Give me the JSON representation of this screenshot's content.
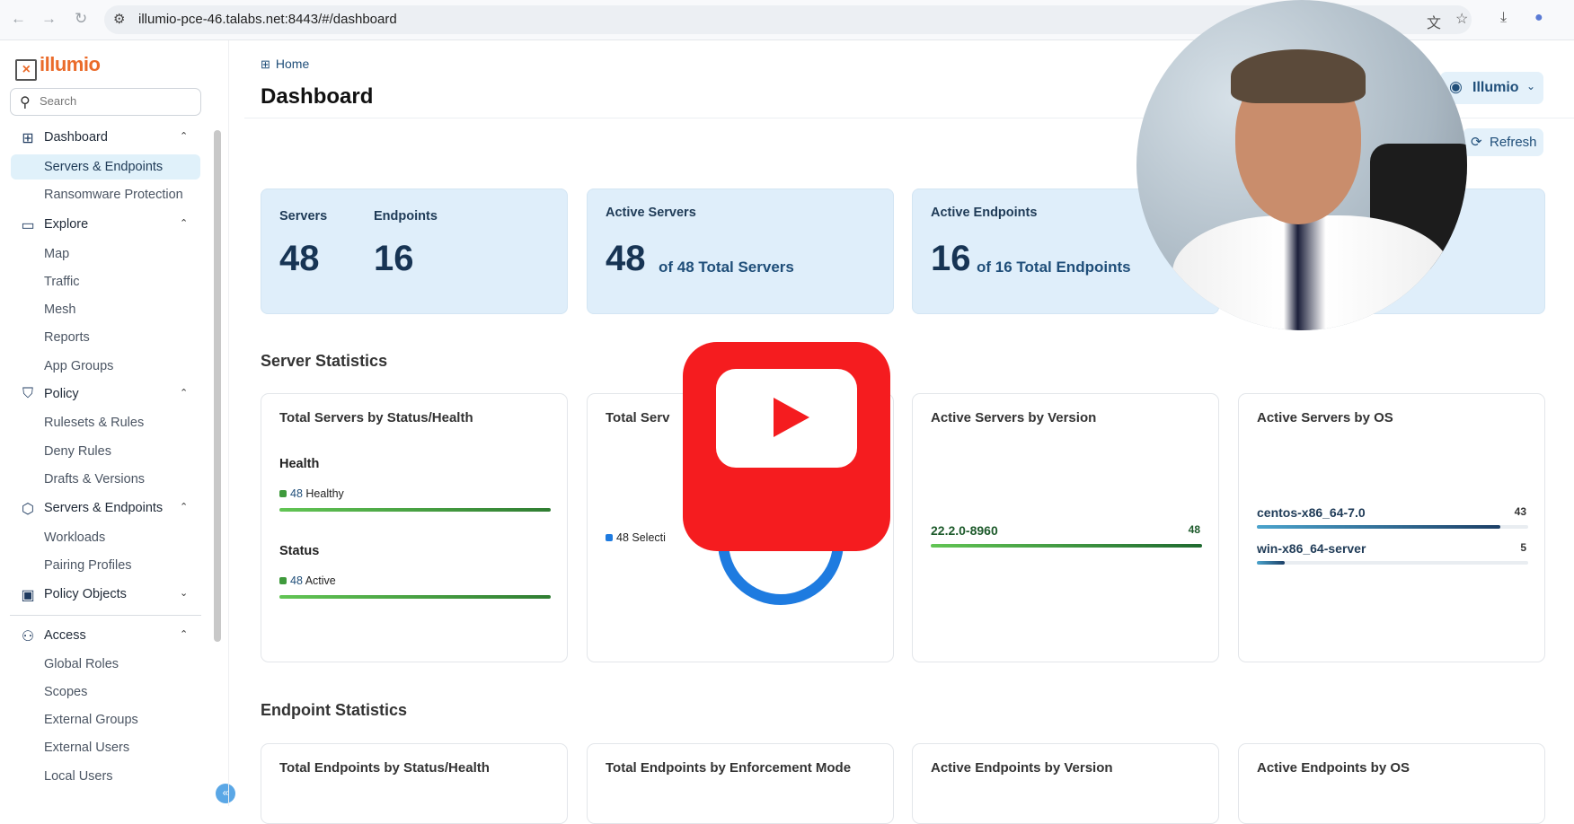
{
  "browser": {
    "url": "illumio-pce-46.talabs.net:8443/#/dashboard",
    "icons": [
      "back-icon",
      "forward-icon",
      "reload-icon",
      "site-settings-icon",
      "translate-icon",
      "star-icon",
      "download-icon",
      "profile-icon"
    ]
  },
  "sidebar": {
    "logo": "illumio",
    "search_placeholder": "Search",
    "sections": [
      {
        "label": "Dashboard",
        "icon": "grid-icon",
        "items": [
          "Servers & Endpoints",
          "Ransomware Protection"
        ]
      },
      {
        "label": "Explore",
        "icon": "explore-icon",
        "items": [
          "Map",
          "Traffic",
          "Mesh",
          "Reports",
          "App Groups"
        ]
      },
      {
        "label": "Policy",
        "icon": "shield-icon",
        "items": [
          "Rulesets & Rules",
          "Deny Rules",
          "Drafts & Versions"
        ]
      },
      {
        "label": "Servers & Endpoints",
        "icon": "cube-icon",
        "items": [
          "Workloads",
          "Pairing Profiles"
        ]
      },
      {
        "label": "Policy Objects",
        "icon": "folder-icon",
        "items": []
      },
      {
        "label": "Access",
        "icon": "user-lock-icon",
        "items": [
          "Global Roles",
          "Scopes",
          "External Groups",
          "External Users",
          "Local Users"
        ]
      }
    ],
    "active_item": "Servers & Endpoints"
  },
  "header": {
    "breadcrumb": "Home",
    "title": "Dashboard",
    "org_button": "Illumio",
    "refresh_button": "Refresh"
  },
  "summary": {
    "servers_label": "Servers",
    "servers_value": "48",
    "endpoints_label": "Endpoints",
    "endpoints_value": "16",
    "active_servers_label": "Active Servers",
    "active_servers_value": "48",
    "active_servers_of": "of 48 Total Servers",
    "active_endpoints_label": "Active Endpoints",
    "active_endpoints_value": "16",
    "active_endpoints_of": "of 16 Total Endpoints"
  },
  "server_stats": {
    "heading": "Server Statistics",
    "status_health": {
      "title": "Total Servers by Status/Health",
      "health_label": "Health",
      "health_count": "48",
      "health_text": "Healthy",
      "health_fraction": 1.0,
      "status_label": "Status",
      "status_count": "48",
      "status_text": "Active",
      "status_fraction": 1.0
    },
    "enforcement": {
      "title": "Total Serv",
      "legend_count": "48",
      "legend_text": "Selecti"
    },
    "by_version": {
      "title": "Active Servers by Version",
      "rows": [
        {
          "label": "22.2.0-8960",
          "value": "48",
          "fraction": 1.0
        }
      ]
    },
    "by_os": {
      "title": "Active Servers by OS",
      "rows": [
        {
          "label": "centos-x86_64-7.0",
          "value": "43",
          "fraction": 0.896
        },
        {
          "label": "win-x86_64-server",
          "value": "5",
          "fraction": 0.104
        }
      ]
    }
  },
  "endpoint_stats": {
    "heading": "Endpoint Statistics",
    "cards": [
      "Total Endpoints by Status/Health",
      "Total Endpoints by Enforcement Mode",
      "Active Endpoints by Version",
      "Active Endpoints by OS"
    ]
  },
  "colors": {
    "accent": "#1f4e79",
    "healthy": "#3f9a3c",
    "donut": "#1e7be0",
    "card_bg": "#dfeefa",
    "youtube": "#f51c1f"
  }
}
